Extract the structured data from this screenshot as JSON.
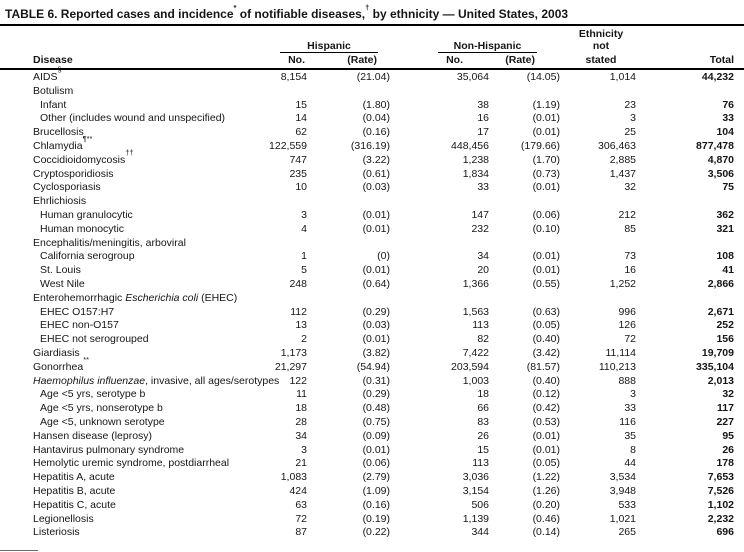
{
  "title_parts": [
    {
      "t": "TABLE 6. Reported cases and incidence"
    },
    {
      "t": "*",
      "sup": true
    },
    {
      "t": " of notifiable diseases,"
    },
    {
      "t": "†",
      "sup": true
    },
    {
      "t": " by ethnicity — United States, 2003"
    }
  ],
  "header": {
    "disease_label": "Disease",
    "hispanic_label": "Hispanic",
    "non_hispanic_label": "Non-Hispanic",
    "no_label": "No.",
    "rate_label": "(Rate)",
    "ethnicity_line1": "Ethnicity",
    "ethnicity_line2": "not",
    "ethnicity_line3": "stated",
    "total_label": "Total"
  },
  "rows": [
    {
      "label_parts": [
        {
          "t": "AIDS"
        },
        {
          "t": "§",
          "sup": true
        }
      ],
      "indent": false,
      "cells": [
        "8,154",
        "(21.04)",
        "35,064",
        "(14.05)",
        "1,014",
        "44,232"
      ]
    },
    {
      "label_parts": [
        {
          "t": "Botulism"
        }
      ],
      "indent": false,
      "cells": [
        "",
        "",
        "",
        "",
        "",
        ""
      ]
    },
    {
      "label_parts": [
        {
          "t": "Infant"
        }
      ],
      "indent": true,
      "cells": [
        "15",
        "(1.80)",
        "38",
        "(1.19)",
        "23",
        "76"
      ]
    },
    {
      "label_parts": [
        {
          "t": "Other (includes wound and unspecified)"
        }
      ],
      "indent": true,
      "cells": [
        "14",
        "(0.04)",
        "16",
        "(0.01)",
        "3",
        "33"
      ]
    },
    {
      "label_parts": [
        {
          "t": "Brucellosis"
        }
      ],
      "indent": false,
      "cells": [
        "62",
        "(0.16)",
        "17",
        "(0.01)",
        "25",
        "104"
      ]
    },
    {
      "label_parts": [
        {
          "t": "Chlamydia"
        },
        {
          "t": "¶**",
          "sup": true
        }
      ],
      "indent": false,
      "cells": [
        "122,559",
        "(316.19)",
        "448,456",
        "(179.66)",
        "306,463",
        "877,478"
      ]
    },
    {
      "label_parts": [
        {
          "t": "Coccidioidomycosis"
        },
        {
          "t": "††",
          "sup": true
        }
      ],
      "indent": false,
      "cells": [
        "747",
        "(3.22)",
        "1,238",
        "(1.70)",
        "2,885",
        "4,870"
      ]
    },
    {
      "label_parts": [
        {
          "t": "Cryptosporidiosis"
        }
      ],
      "indent": false,
      "cells": [
        "235",
        "(0.61)",
        "1,834",
        "(0.73)",
        "1,437",
        "3,506"
      ]
    },
    {
      "label_parts": [
        {
          "t": "Cyclosporiasis"
        }
      ],
      "indent": false,
      "cells": [
        "10",
        "(0.03)",
        "33",
        "(0.01)",
        "32",
        "75"
      ]
    },
    {
      "label_parts": [
        {
          "t": "Ehrlichiosis"
        }
      ],
      "indent": false,
      "cells": [
        "",
        "",
        "",
        "",
        "",
        ""
      ]
    },
    {
      "label_parts": [
        {
          "t": "Human granulocytic"
        }
      ],
      "indent": true,
      "cells": [
        "3",
        "(0.01)",
        "147",
        "(0.06)",
        "212",
        "362"
      ]
    },
    {
      "label_parts": [
        {
          "t": "Human monocytic"
        }
      ],
      "indent": true,
      "cells": [
        "4",
        "(0.01)",
        "232",
        "(0.10)",
        "85",
        "321"
      ]
    },
    {
      "label_parts": [
        {
          "t": "Encephalitis/meningitis, arboviral"
        }
      ],
      "indent": false,
      "cells": [
        "",
        "",
        "",
        "",
        "",
        ""
      ]
    },
    {
      "label_parts": [
        {
          "t": "California serogroup"
        }
      ],
      "indent": true,
      "cells": [
        "1",
        "(0)",
        "34",
        "(0.01)",
        "73",
        "108"
      ]
    },
    {
      "label_parts": [
        {
          "t": "St. Louis"
        }
      ],
      "indent": true,
      "cells": [
        "5",
        "(0.01)",
        "20",
        "(0.01)",
        "16",
        "41"
      ]
    },
    {
      "label_parts": [
        {
          "t": "West Nile"
        }
      ],
      "indent": true,
      "cells": [
        "248",
        "(0.64)",
        "1,366",
        "(0.55)",
        "1,252",
        "2,866"
      ]
    },
    {
      "label_parts": [
        {
          "t": "Enterohemorrhagic "
        },
        {
          "t": "Escherichia coli",
          "i": true
        },
        {
          "t": " (EHEC)"
        }
      ],
      "indent": false,
      "cells": [
        "",
        "",
        "",
        "",
        "",
        ""
      ]
    },
    {
      "label_parts": [
        {
          "t": "EHEC O157:H7"
        }
      ],
      "indent": true,
      "cells": [
        "112",
        "(0.29)",
        "1,563",
        "(0.63)",
        "996",
        "2,671"
      ]
    },
    {
      "label_parts": [
        {
          "t": "EHEC non-O157"
        }
      ],
      "indent": true,
      "cells": [
        "13",
        "(0.03)",
        "113",
        "(0.05)",
        "126",
        "252"
      ]
    },
    {
      "label_parts": [
        {
          "t": "EHEC not serogrouped"
        }
      ],
      "indent": true,
      "cells": [
        "2",
        "(0.01)",
        "82",
        "(0.40)",
        "72",
        "156"
      ]
    },
    {
      "label_parts": [
        {
          "t": "Giardiasis"
        }
      ],
      "indent": false,
      "cells": [
        "1,173",
        "(3.82)",
        "7,422",
        "(3.42)",
        "11,114",
        "19,709"
      ]
    },
    {
      "label_parts": [
        {
          "t": "Gonorrhea"
        },
        {
          "t": "**",
          "sup": true
        }
      ],
      "indent": false,
      "cells": [
        "21,297",
        "(54.94)",
        "203,594",
        "(81.57)",
        "110,213",
        "335,104"
      ]
    },
    {
      "label_parts": [
        {
          "t": "Haemophilus influenzae",
          "i": true
        },
        {
          "t": ", invasive, all ages/serotypes"
        }
      ],
      "indent": false,
      "cells": [
        "122",
        "(0.31)",
        "1,003",
        "(0.40)",
        "888",
        "2,013"
      ]
    },
    {
      "label_parts": [
        {
          "t": "Age <5 yrs, serotype b"
        }
      ],
      "indent": true,
      "cells": [
        "11",
        "(0.29)",
        "18",
        "(0.12)",
        "3",
        "32"
      ]
    },
    {
      "label_parts": [
        {
          "t": "Age <5 yrs, nonserotype b"
        }
      ],
      "indent": true,
      "cells": [
        "18",
        "(0.48)",
        "66",
        "(0.42)",
        "33",
        "117"
      ]
    },
    {
      "label_parts": [
        {
          "t": "Age <5, unknown serotype"
        }
      ],
      "indent": true,
      "cells": [
        "28",
        "(0.75)",
        "83",
        "(0.53)",
        "116",
        "227"
      ]
    },
    {
      "label_parts": [
        {
          "t": "Hansen disease (leprosy)"
        }
      ],
      "indent": false,
      "cells": [
        "34",
        "(0.09)",
        "26",
        "(0.01)",
        "35",
        "95"
      ]
    },
    {
      "label_parts": [
        {
          "t": "Hantavirus pulmonary syndrome"
        }
      ],
      "indent": false,
      "cells": [
        "3",
        "(0.01)",
        "15",
        "(0.01)",
        "8",
        "26"
      ]
    },
    {
      "label_parts": [
        {
          "t": "Hemolytic uremic syndrome, postdiarrheal"
        }
      ],
      "indent": false,
      "cells": [
        "21",
        "(0.06)",
        "113",
        "(0.05)",
        "44",
        "178"
      ]
    },
    {
      "label_parts": [
        {
          "t": "Hepatitis A, acute"
        }
      ],
      "indent": false,
      "cells": [
        "1,083",
        "(2.79)",
        "3,036",
        "(1.22)",
        "3,534",
        "7,653"
      ]
    },
    {
      "label_parts": [
        {
          "t": "Hepatitis B, acute"
        }
      ],
      "indent": false,
      "cells": [
        "424",
        "(1.09)",
        "3,154",
        "(1.26)",
        "3,948",
        "7,526"
      ]
    },
    {
      "label_parts": [
        {
          "t": "Hepatitis C, acute"
        }
      ],
      "indent": false,
      "cells": [
        "63",
        "(0.16)",
        "506",
        "(0.20)",
        "533",
        "1,102"
      ]
    },
    {
      "label_parts": [
        {
          "t": "Legionellosis"
        }
      ],
      "indent": false,
      "cells": [
        "72",
        "(0.19)",
        "1,139",
        "(0.46)",
        "1,021",
        "2,232"
      ]
    },
    {
      "label_parts": [
        {
          "t": "Listeriosis"
        }
      ],
      "indent": false,
      "cells": [
        "87",
        "(0.22)",
        "344",
        "(0.14)",
        "265",
        "696"
      ]
    }
  ]
}
